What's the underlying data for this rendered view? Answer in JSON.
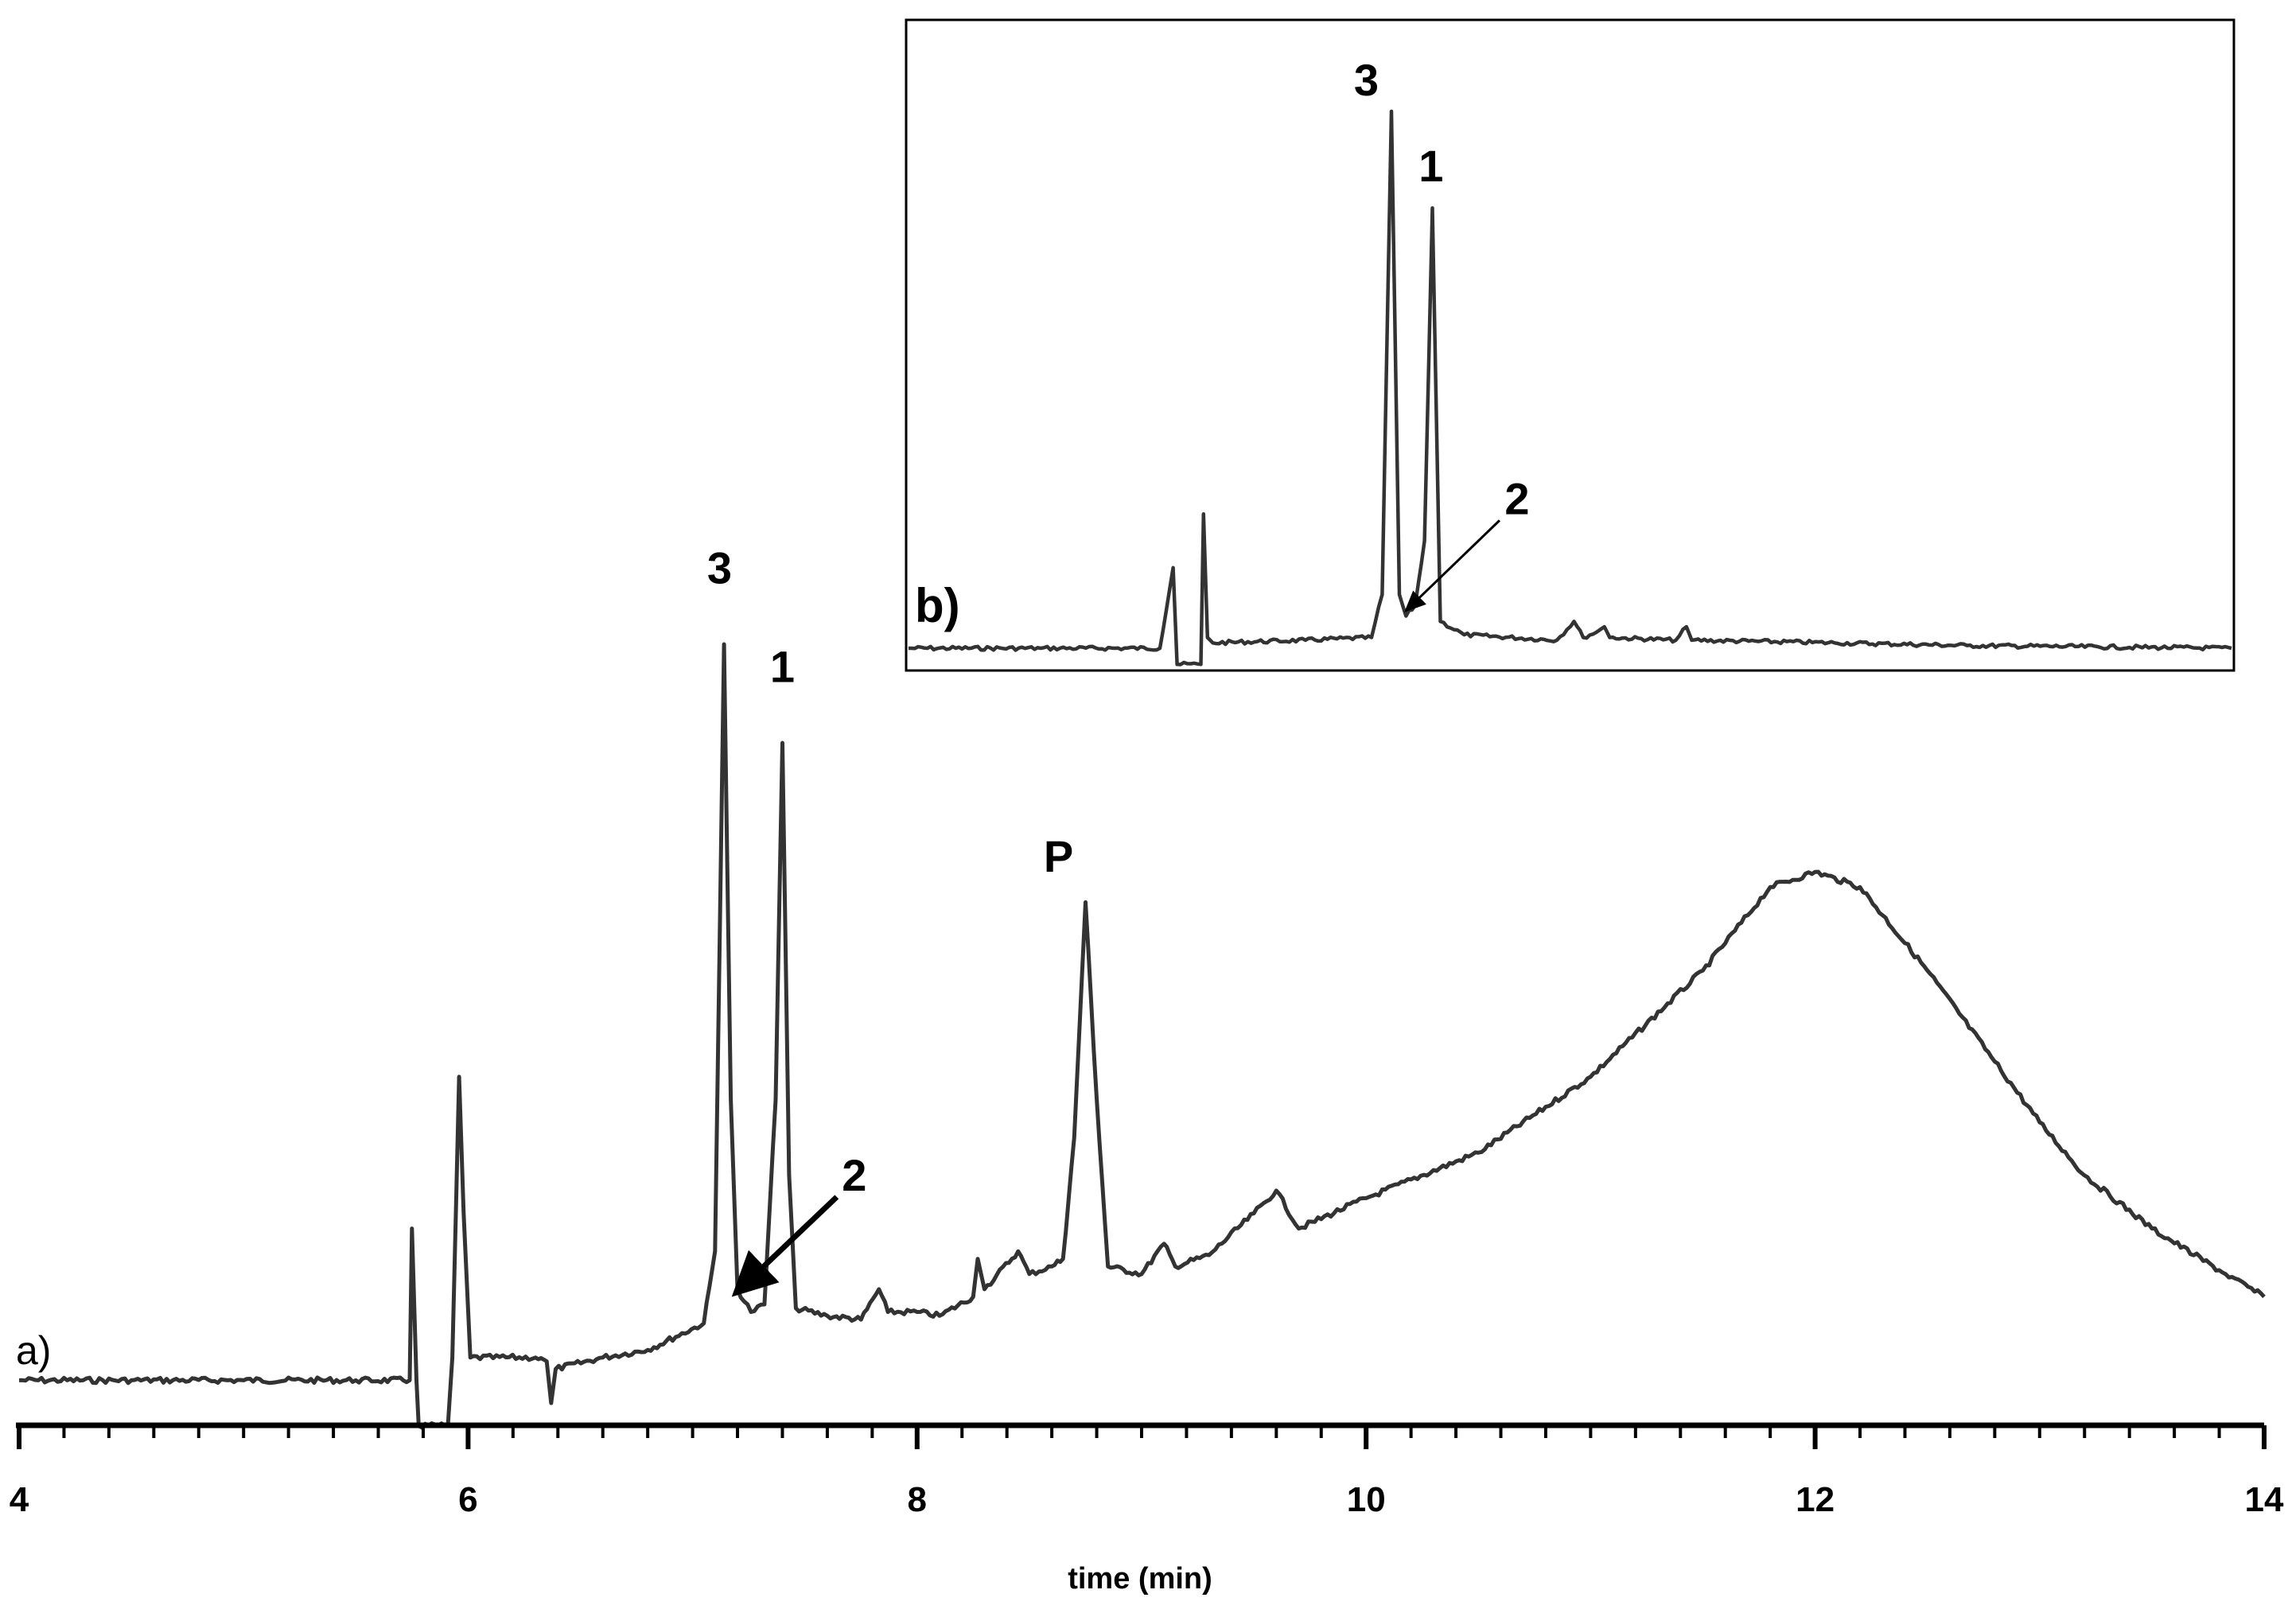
{
  "chart_data": [
    {
      "panel": "a)",
      "type": "line",
      "xlabel": "time (min)",
      "ylabel": "",
      "xlim": [
        4,
        14
      ],
      "ylim": [
        0,
        100
      ],
      "x_ticks": [
        "4",
        "6",
        "8",
        "10",
        "12",
        "14"
      ],
      "y_axis_shown": false,
      "grid": false,
      "series": [
        {
          "color": "#333333",
          "points": [
            [
              4.0,
              3
            ],
            [
              4.5,
              3
            ],
            [
              5.0,
              3
            ],
            [
              5.5,
              3
            ],
            [
              5.74,
              3
            ],
            [
              5.75,
              23
            ],
            [
              5.77,
              3
            ],
            [
              5.78,
              -3
            ],
            [
              5.91,
              -3
            ],
            [
              5.93,
              6
            ],
            [
              5.96,
              43
            ],
            [
              5.98,
              25
            ],
            [
              6.01,
              6
            ],
            [
              6.3,
              6
            ],
            [
              6.35,
              5.5
            ],
            [
              6.37,
              0
            ],
            [
              6.39,
              4.5
            ],
            [
              6.6,
              6
            ],
            [
              6.8,
              7
            ],
            [
              7.05,
              10.5
            ],
            [
              7.1,
              20
            ],
            [
              7.12,
              60
            ],
            [
              7.14,
              100
            ],
            [
              7.17,
              40
            ],
            [
              7.2,
              15
            ],
            [
              7.26,
              12
            ],
            [
              7.32,
              13
            ],
            [
              7.37,
              40
            ],
            [
              7.4,
              87
            ],
            [
              7.43,
              30
            ],
            [
              7.46,
              12.5
            ],
            [
              7.6,
              11.5
            ],
            [
              7.75,
              11
            ],
            [
              7.83,
              15
            ],
            [
              7.87,
              12
            ],
            [
              8.0,
              12
            ],
            [
              8.1,
              11.5
            ],
            [
              8.25,
              14
            ],
            [
              8.27,
              19
            ],
            [
              8.3,
              15
            ],
            [
              8.45,
              20
            ],
            [
              8.5,
              17
            ],
            [
              8.6,
              18
            ],
            [
              8.65,
              19
            ],
            [
              8.7,
              35
            ],
            [
              8.75,
              66
            ],
            [
              8.8,
              40
            ],
            [
              8.85,
              18
            ],
            [
              9.0,
              17
            ],
            [
              9.1,
              21
            ],
            [
              9.15,
              18
            ],
            [
              9.3,
              19.5
            ],
            [
              9.5,
              25
            ],
            [
              9.6,
              28
            ],
            [
              9.7,
              23
            ],
            [
              10.0,
              27
            ],
            [
              10.5,
              33
            ],
            [
              11.0,
              43
            ],
            [
              11.5,
              57
            ],
            [
              11.8,
              68
            ],
            [
              12.0,
              70
            ],
            [
              12.2,
              68
            ],
            [
              12.5,
              57
            ],
            [
              12.8,
              45
            ],
            [
              13.0,
              37
            ],
            [
              13.2,
              30
            ],
            [
              13.5,
              23
            ],
            [
              13.8,
              17.5
            ],
            [
              14.0,
              14
            ]
          ]
        }
      ],
      "annotations": [
        {
          "text": "3",
          "x": 7.12,
          "y": 108
        },
        {
          "text": "1",
          "x": 7.4,
          "y": 95
        },
        {
          "text": "P",
          "x": 8.63,
          "y": 70
        },
        {
          "text": "2",
          "x": 7.72,
          "y": 28,
          "arrow_to": [
            7.21,
            15
          ]
        }
      ]
    },
    {
      "panel": "b)",
      "type": "line",
      "x_axis_shown": false,
      "y_axis_shown": false,
      "grid": false,
      "xlim": [
        0,
        100
      ],
      "ylim": [
        0,
        100
      ],
      "series": [
        {
          "color": "#333333",
          "points": [
            [
              0,
              0
            ],
            [
              10,
              0
            ],
            [
              19,
              0
            ],
            [
              20,
              15
            ],
            [
              20.3,
              -3
            ],
            [
              22.1,
              -3
            ],
            [
              22.3,
              25
            ],
            [
              22.6,
              2
            ],
            [
              23,
              1
            ],
            [
              30,
              1.5
            ],
            [
              35,
              2
            ],
            [
              35.8,
              10
            ],
            [
              36.5,
              100
            ],
            [
              37.1,
              10
            ],
            [
              37.6,
              6
            ],
            [
              38.3,
              8
            ],
            [
              39,
              20
            ],
            [
              39.6,
              82
            ],
            [
              40.2,
              5
            ],
            [
              42,
              2.5
            ],
            [
              49,
              1.5
            ],
            [
              50.3,
              5
            ],
            [
              51,
              2
            ],
            [
              52,
              3
            ],
            [
              52.6,
              4
            ],
            [
              53,
              2
            ],
            [
              58,
              1.5
            ],
            [
              58.8,
              4
            ],
            [
              59.2,
              1.5
            ],
            [
              70,
              1
            ],
            [
              80,
              0.5
            ],
            [
              100,
              0
            ]
          ]
        }
      ],
      "annotations": [
        {
          "text": "3",
          "x": 34.6,
          "y": 103
        },
        {
          "text": "1",
          "x": 39.5,
          "y": 87
        },
        {
          "text": "2",
          "x": 46,
          "y": 25,
          "arrow_to": [
            37.6,
            7
          ]
        }
      ]
    }
  ]
}
